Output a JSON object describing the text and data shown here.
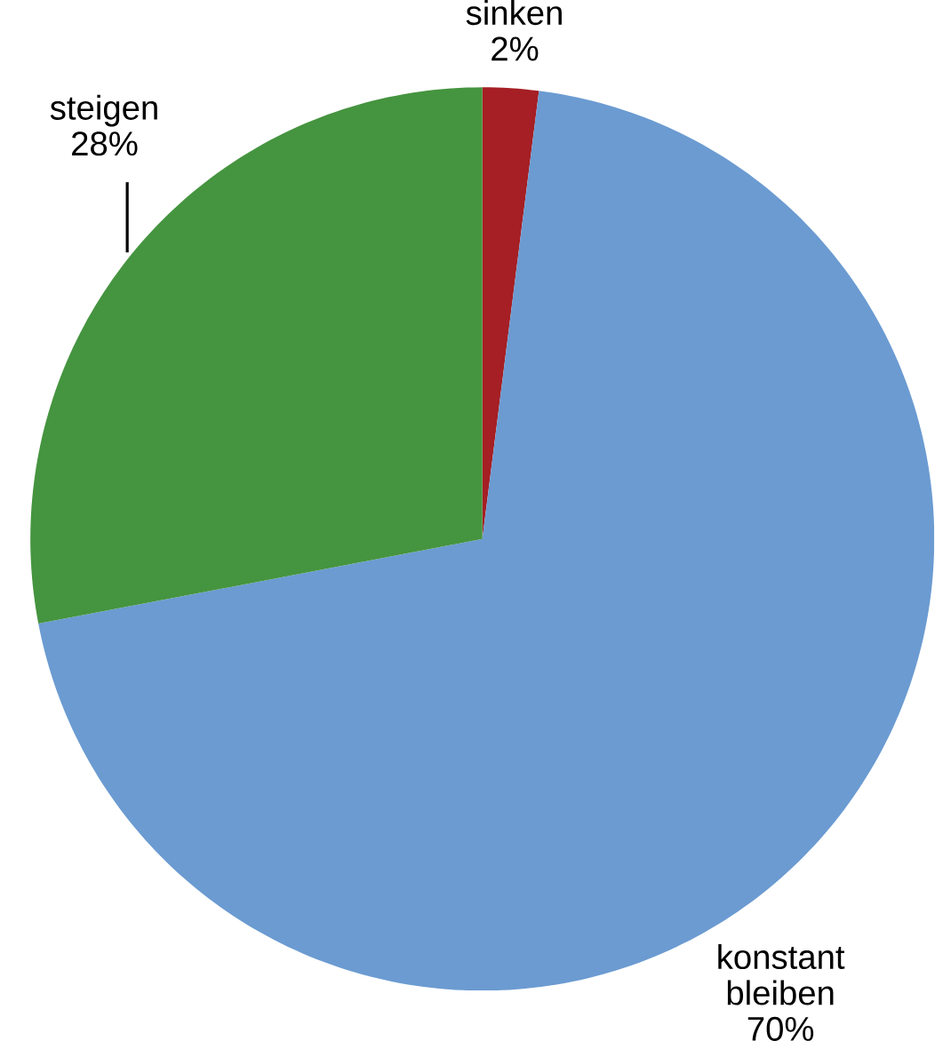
{
  "chart_data": {
    "type": "pie",
    "categories": [
      "sinken",
      "konstant bleiben",
      "steigen"
    ],
    "values": [
      2,
      70,
      28
    ],
    "value_labels": [
      "2%",
      "70%",
      "28%"
    ],
    "colors": [
      "#a51f24",
      "#6b9bd1",
      "#45943f"
    ]
  }
}
